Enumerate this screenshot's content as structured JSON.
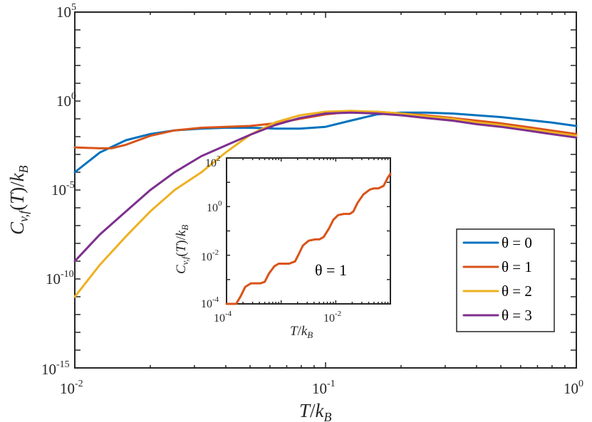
{
  "chart_data": [
    {
      "type": "line",
      "xscale": "log",
      "yscale": "log",
      "xlim": [
        0.01,
        1
      ],
      "ylim": [
        1e-15,
        100000.0
      ],
      "xlabel": "T/k_B",
      "ylabel": "C_{v,f}(T)/k_B",
      "x_ticks": [
        {
          "base": "10",
          "exp": "-2"
        },
        {
          "base": "10",
          "exp": "-1"
        },
        {
          "base": "10",
          "exp": "0"
        }
      ],
      "y_ticks": [
        {
          "base": "10",
          "exp": "-15"
        },
        {
          "base": "10",
          "exp": "-10"
        },
        {
          "base": "10",
          "exp": "-5"
        },
        {
          "base": "10",
          "exp": "0"
        },
        {
          "base": "10",
          "exp": "5"
        }
      ],
      "legend_position": "bottom-right",
      "series": [
        {
          "name": "θ = 0",
          "color": "#0072BD",
          "x": [
            0.01,
            0.0126,
            0.016,
            0.02,
            0.025,
            0.032,
            0.04,
            0.05,
            0.063,
            0.079,
            0.1,
            0.126,
            0.16,
            0.2,
            0.25,
            0.32,
            0.4,
            0.5,
            0.63,
            0.79,
            1.0
          ],
          "y": [
            0.0001,
            0.0013,
            0.0063,
            0.0141,
            0.0224,
            0.0282,
            0.0316,
            0.0316,
            0.0282,
            0.0282,
            0.0355,
            0.0794,
            0.1778,
            0.2239,
            0.2239,
            0.2,
            0.1585,
            0.1259,
            0.0891,
            0.0631,
            0.0398
          ]
        },
        {
          "name": "θ = 1",
          "color": "#D95319",
          "x": [
            0.01,
            0.0126,
            0.014,
            0.016,
            0.02,
            0.025,
            0.032,
            0.04,
            0.05,
            0.063,
            0.079,
            0.1,
            0.126,
            0.16,
            0.2,
            0.25,
            0.32,
            0.4,
            0.5,
            0.63,
            0.79,
            1.0
          ],
          "y": [
            0.0025,
            0.0022,
            0.0022,
            0.0035,
            0.0112,
            0.0224,
            0.0316,
            0.0355,
            0.0398,
            0.0562,
            0.1,
            0.1778,
            0.2512,
            0.2512,
            0.2,
            0.1585,
            0.1122,
            0.0794,
            0.0562,
            0.0355,
            0.0224,
            0.0141
          ]
        },
        {
          "name": "θ = 2",
          "color": "#EDB120",
          "x": [
            0.01,
            0.0126,
            0.016,
            0.02,
            0.025,
            0.032,
            0.04,
            0.05,
            0.063,
            0.079,
            0.1,
            0.126,
            0.16,
            0.2,
            0.25,
            0.32,
            0.4,
            0.5,
            0.63,
            0.79,
            1.0
          ],
          "y": [
            1e-11,
            6.3e-10,
            2.5e-08,
            6.3e-07,
            1e-05,
            0.0001,
            0.0013,
            0.0126,
            0.0631,
            0.1585,
            0.2512,
            0.2818,
            0.2512,
            0.1995,
            0.1413,
            0.1,
            0.0631,
            0.0447,
            0.0282,
            0.0178,
            0.0112
          ]
        },
        {
          "name": "θ = 3",
          "color": "#7E2F8E",
          "x": [
            0.01,
            0.0126,
            0.016,
            0.02,
            0.025,
            0.032,
            0.04,
            0.05,
            0.063,
            0.079,
            0.1,
            0.126,
            0.16,
            0.2,
            0.25,
            0.32,
            0.4,
            0.5,
            0.63,
            0.79,
            1.0
          ],
          "y": [
            1e-09,
            3.2e-08,
            6.3e-07,
            1e-05,
            0.0001,
            0.0008,
            0.0032,
            0.0126,
            0.0447,
            0.1122,
            0.1995,
            0.2239,
            0.1995,
            0.1585,
            0.1122,
            0.0794,
            0.0501,
            0.0355,
            0.0224,
            0.0141,
            0.0089
          ]
        }
      ]
    },
    {
      "type": "line",
      "inset": true,
      "xscale": "log",
      "yscale": "log",
      "xlim": [
        0.0001,
        0.1
      ],
      "ylim": [
        0.0001,
        100
      ],
      "xlabel": "T/k_B",
      "ylabel": "C_{v,f}(T)/k_B",
      "x_ticks": [
        {
          "base": "10",
          "exp": "-4"
        },
        {
          "base": "10",
          "exp": "-2"
        }
      ],
      "y_ticks": [
        {
          "base": "10",
          "exp": "-4"
        },
        {
          "base": "10",
          "exp": "-2"
        },
        {
          "base": "10",
          "exp": "0"
        },
        {
          "base": "10",
          "exp": "2"
        }
      ],
      "annotation": "θ = 1",
      "series": [
        {
          "name": "θ = 1",
          "color": "#D95319",
          "x": [
            0.0001,
            0.00015,
            0.00018,
            0.00022,
            0.00028,
            0.00035,
            0.00042,
            0.0005,
            0.0006,
            0.00075,
            0.0009,
            0.0011,
            0.0014,
            0.0018,
            0.0021,
            0.0025,
            0.0032,
            0.0042,
            0.005,
            0.006,
            0.0075,
            0.009,
            0.011,
            0.014,
            0.018,
            0.021,
            0.025,
            0.032,
            0.042,
            0.05,
            0.06,
            0.075,
            0.09,
            0.1
          ],
          "y": [
            0.0001,
            0.0001,
            0.0002,
            0.0005,
            0.0007,
            0.0007,
            0.0007,
            0.0008,
            0.0018,
            0.0035,
            0.0045,
            0.0045,
            0.0045,
            0.0056,
            0.0112,
            0.0251,
            0.0398,
            0.0447,
            0.0447,
            0.0562,
            0.1259,
            0.2818,
            0.4467,
            0.5012,
            0.5012,
            0.6309,
            1.4125,
            3.1623,
            5.0119,
            5.6234,
            5.6234,
            7.0795,
            15.8489,
            22.3872
          ]
        }
      ]
    }
  ]
}
